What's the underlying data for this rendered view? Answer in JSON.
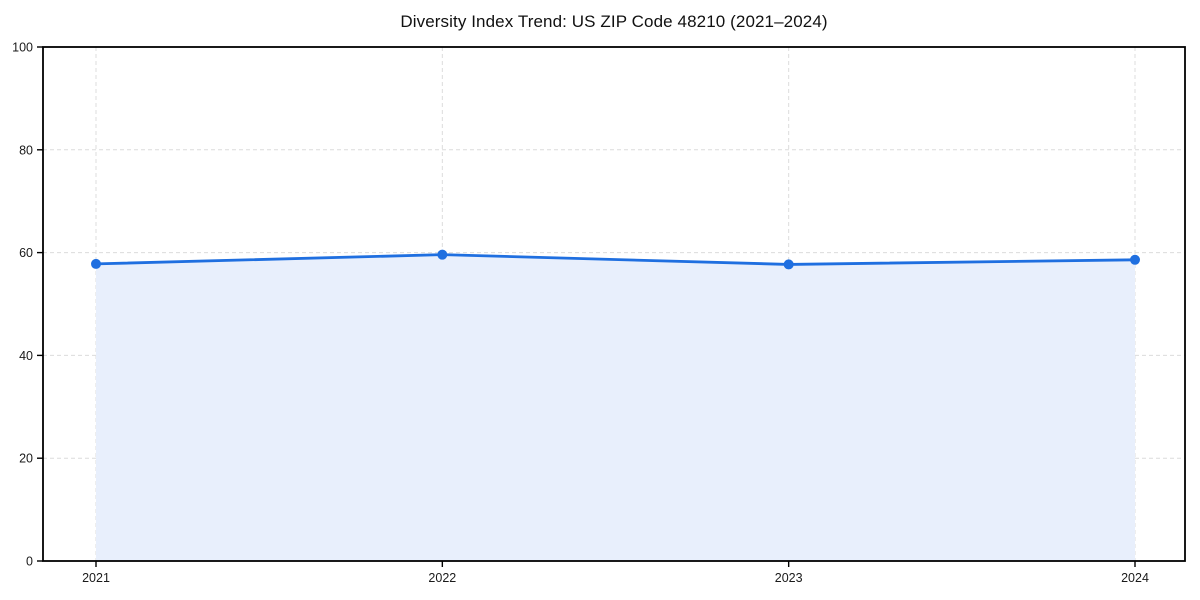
{
  "figure": {
    "background": "#ffffff"
  },
  "chart_data": {
    "type": "area",
    "title": "Diversity Index Trend: US ZIP Code 48210 (2021–2024)",
    "categories": [
      "2021",
      "2022",
      "2023",
      "2024"
    ],
    "series": [
      {
        "name": "Diversity Index",
        "values": [
          57.8,
          59.6,
          57.7,
          58.6
        ]
      }
    ],
    "xlabel": "",
    "ylabel": "",
    "ylim": [
      0,
      100
    ],
    "yticks": [
      0,
      20,
      40,
      60,
      80,
      100
    ],
    "grid": true,
    "grid_style": "dashed",
    "legend": "none",
    "colors": {
      "line": "#1f6fe0",
      "marker": "#1f6fe0",
      "area_fill": "#e8effc",
      "grid": "#dcdcdc",
      "spine": "#000000",
      "tick_text": "#1a1a1a",
      "background": "#ffffff"
    }
  }
}
